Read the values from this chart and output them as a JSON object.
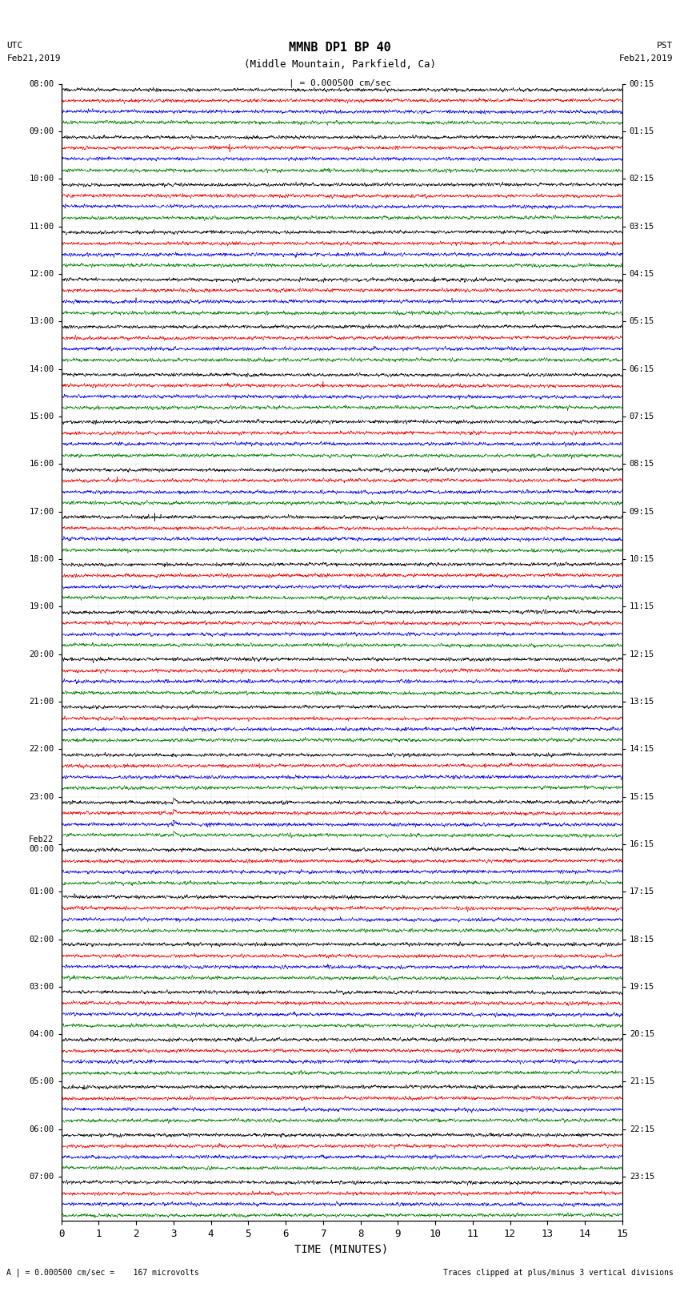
{
  "title_line1": "MMNB DP1 BP 40",
  "title_line2": "(Middle Mountain, Parkfield, Ca)",
  "scale_bar": "| = 0.000500 cm/sec",
  "left_label": "UTC\nFeb21,2019",
  "right_label": "PST\nFeb21,2019",
  "xlabel": "TIME (MINUTES)",
  "footer_left": "A | = 0.000500 cm/sec =    167 microvolts",
  "footer_right": "Traces clipped at plus/minus 3 vertical divisions",
  "xlim": [
    0,
    15
  ],
  "xticks": [
    0,
    1,
    2,
    3,
    4,
    5,
    6,
    7,
    8,
    9,
    10,
    11,
    12,
    13,
    14,
    15
  ],
  "num_rows": 24,
  "traces_per_row": 4,
  "row_colors": [
    "black",
    "red",
    "blue",
    "green"
  ],
  "fig_width": 8.5,
  "fig_height": 16.13,
  "bg_color": "white",
  "noise_seed": 42,
  "left_tick_times": [
    "08:00",
    "09:00",
    "10:00",
    "11:00",
    "12:00",
    "13:00",
    "14:00",
    "15:00",
    "16:00",
    "17:00",
    "18:00",
    "19:00",
    "20:00",
    "21:00",
    "22:00",
    "23:00",
    "Feb22\n00:00",
    "01:00",
    "02:00",
    "03:00",
    "04:00",
    "05:00",
    "06:00",
    "07:00"
  ],
  "right_tick_times": [
    "00:15",
    "01:15",
    "02:15",
    "03:15",
    "04:15",
    "05:15",
    "06:15",
    "07:15",
    "08:15",
    "09:15",
    "10:15",
    "11:15",
    "12:15",
    "13:15",
    "14:15",
    "15:15",
    "16:15",
    "17:15",
    "18:15",
    "19:15",
    "20:15",
    "21:15",
    "22:15",
    "23:15"
  ],
  "num_points": 3000,
  "trace_amplitude": 0.12,
  "trace_separation": 1.0,
  "group_separation": 1.5
}
